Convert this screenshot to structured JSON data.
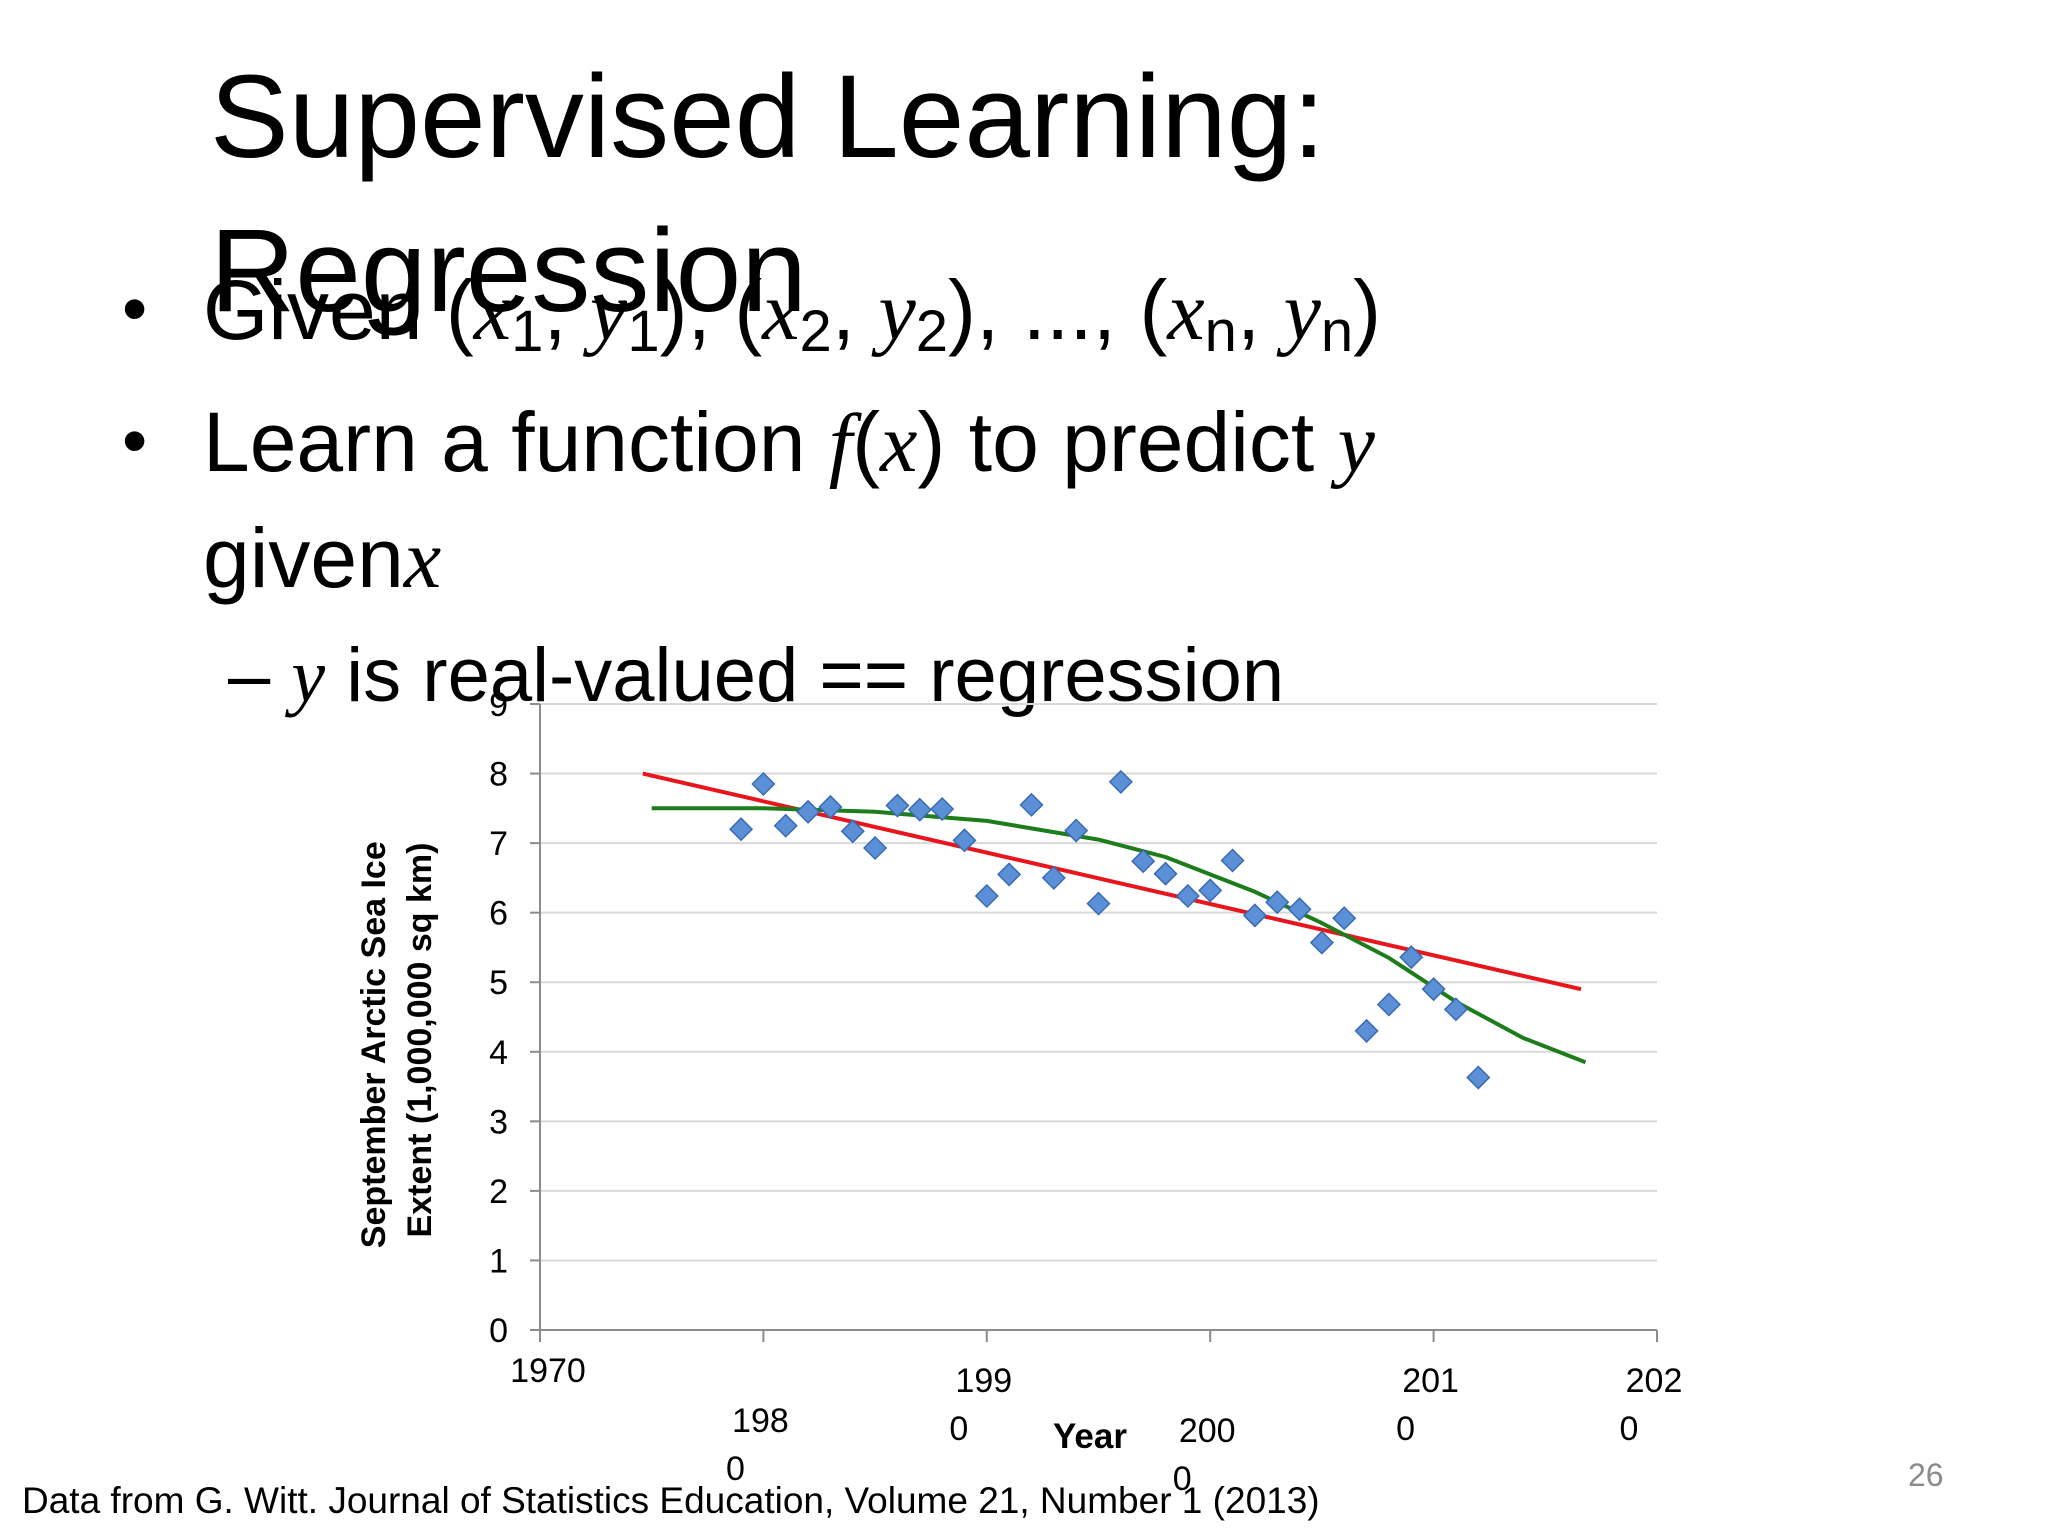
{
  "slide": {
    "title": "Supervised Learning: Regression",
    "bullet1": {
      "prefix": "Given ",
      "pairs": [
        {
          "x": "x",
          "xsub": "1",
          "y": "y",
          "ysub": "1"
        },
        {
          "x": "x",
          "xsub": "2",
          "y": "y",
          "ysub": "2"
        },
        {
          "x": "x",
          "xsub": "n",
          "y": "y",
          "ysub": "n"
        }
      ],
      "ellipsis": "..."
    },
    "bullet2": {
      "text1": "Learn a function ",
      "func": "f",
      "arg": "x",
      "text2": " to predict ",
      "var_y": "y",
      "text3": "given",
      "var_x": "x"
    },
    "subbullet": {
      "dash": "–",
      "var": "y",
      "text": " is real-valued == regression"
    },
    "caption": "Data from G. Witt. Journal of Statistics Education, Volume 21, Number 1 (2013)",
    "slide_number": "26"
  },
  "chart_data": {
    "type": "scatter",
    "xlabel": "Year",
    "ylabel": "September Arctic Sea Ice Extent (1,000,000 sq km)",
    "xlim": [
      1970,
      2020
    ],
    "ylim": [
      0,
      9
    ],
    "x_ticks": [
      "1970",
      "1980",
      "1990",
      "2000",
      "2010",
      "2020"
    ],
    "y_ticks": [
      "0",
      "1",
      "2",
      "3",
      "4",
      "5",
      "6",
      "7",
      "8",
      "9"
    ],
    "series": [
      {
        "kind": "points",
        "color": "#5b8fd6",
        "points": [
          [
            1979,
            7.2
          ],
          [
            1980,
            7.85
          ],
          [
            1981,
            7.25
          ],
          [
            1982,
            7.45
          ],
          [
            1983,
            7.52
          ],
          [
            1984,
            7.17
          ],
          [
            1985,
            6.93
          ],
          [
            1986,
            7.54
          ],
          [
            1987,
            7.48
          ],
          [
            1988,
            7.49
          ],
          [
            1989,
            7.04
          ],
          [
            1990,
            6.24
          ],
          [
            1991,
            6.55
          ],
          [
            1992,
            7.55
          ],
          [
            1993,
            6.5
          ],
          [
            1994,
            7.18
          ],
          [
            1995,
            6.13
          ],
          [
            1996,
            7.88
          ],
          [
            1997,
            6.74
          ],
          [
            1998,
            6.56
          ],
          [
            1999,
            6.24
          ],
          [
            2000,
            6.32
          ],
          [
            2001,
            6.75
          ],
          [
            2002,
            5.96
          ],
          [
            2003,
            6.15
          ],
          [
            2004,
            6.05
          ],
          [
            2005,
            5.57
          ],
          [
            2006,
            5.92
          ],
          [
            2007,
            4.3
          ],
          [
            2008,
            4.68
          ],
          [
            2009,
            5.36
          ],
          [
            2010,
            4.9
          ],
          [
            2011,
            4.61
          ],
          [
            2012,
            3.63
          ]
        ]
      },
      {
        "kind": "line",
        "color": "#e8161c",
        "points": [
          [
            1974.6,
            8.0
          ],
          [
            2016.6,
            4.9
          ]
        ]
      },
      {
        "kind": "line",
        "color": "#1d7d1b",
        "points": [
          [
            1975,
            7.5
          ],
          [
            1980,
            7.5
          ],
          [
            1985,
            7.45
          ],
          [
            1990,
            7.32
          ],
          [
            1995,
            7.05
          ],
          [
            1998,
            6.8
          ],
          [
            2002,
            6.3
          ],
          [
            2005,
            5.85
          ],
          [
            2008,
            5.35
          ],
          [
            2011,
            4.72
          ],
          [
            2014,
            4.2
          ],
          [
            2016.8,
            3.85
          ]
        ]
      }
    ]
  }
}
